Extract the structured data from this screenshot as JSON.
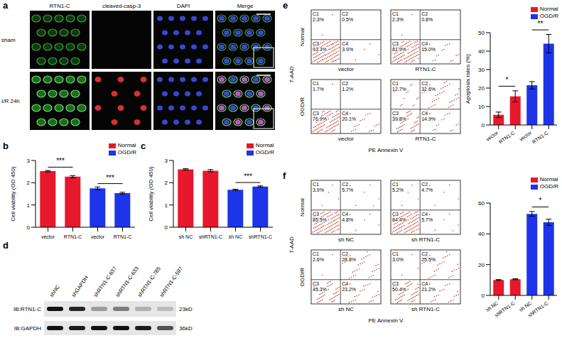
{
  "panels": {
    "a": {
      "letter": "a",
      "columns": [
        "RTN1-C",
        "cleaved-casp-3",
        "DAPI",
        "Merge"
      ],
      "rows": [
        "sham",
        "I/R 24h"
      ]
    },
    "d": {
      "letter": "d",
      "lanes": [
        "shNC",
        "shGAPDH",
        "shRTN1-C-837",
        "shRTN1-C-633",
        "shRTN1-C-785",
        "shRTN1-C-597"
      ],
      "blots": [
        {
          "label": "IB:RTN1-C",
          "size": "23kD",
          "band_intensity": [
            1,
            0.9,
            0.35,
            0.5,
            0.25,
            0.2
          ]
        },
        {
          "label": "IB:GAPDH",
          "size": "36kD",
          "band_intensity": [
            1,
            0.95,
            1,
            1,
            0.95,
            0.7
          ]
        }
      ]
    },
    "e_flow": {
      "letter": "e",
      "rows": [
        "Normal",
        "OGD/R"
      ],
      "columns": [
        "vector",
        "RTN1-C"
      ],
      "x_label": "PE Annexin V",
      "y_label": "7-AAD",
      "plots": [
        [
          [
            {
              "quadrant": "C1",
              "value": 2.3,
              "label": "2.3%"
            },
            {
              "quadrant": "C2",
              "value": 0.5,
              "label": "0.5%"
            },
            {
              "quadrant": "C3",
              "value": 93.3,
              "label": "93.3%"
            },
            {
              "quadrant": "C4",
              "value": 3.9,
              "label": "3.9%"
            }
          ],
          [
            {
              "quadrant": "C1",
              "value": 2.3,
              "label": "2.3%"
            },
            {
              "quadrant": "C2",
              "value": 0.8,
              "label": "0.8%"
            },
            {
              "quadrant": "C3",
              "value": 81.9,
              "label": "81.9%"
            },
            {
              "quadrant": "C4",
              "value": 15.0,
              "label": "15.0%"
            }
          ]
        ],
        [
          [
            {
              "quadrant": "C1",
              "value": 1.7,
              "label": "1.7%"
            },
            {
              "quadrant": "C2",
              "value": 1.2,
              "label": "1.2%"
            },
            {
              "quadrant": "C3",
              "value": 76.9,
              "label": "76.9%"
            },
            {
              "quadrant": "C4",
              "value": 20.1,
              "label": "20.1%"
            }
          ],
          [
            {
              "quadrant": "C1",
              "value": 12.7,
              "label": "12.7%"
            },
            {
              "quadrant": "C2",
              "value": 32.6,
              "label": "32.6%"
            },
            {
              "quadrant": "C3",
              "value": 39.8,
              "label": "39.8%"
            },
            {
              "quadrant": "C4",
              "value": 14.9,
              "label": "14.9%"
            }
          ]
        ]
      ]
    },
    "f_flow": {
      "letter": "f",
      "rows": [
        "Normal",
        "OGD/R"
      ],
      "columns": [
        "sh NC",
        "sh RTN1-C"
      ],
      "x_label": "PE Annexin V",
      "y_label": "7-AAD",
      "plots": [
        [
          [
            {
              "quadrant": "C1",
              "value": 3.9,
              "label": "3.9%"
            },
            {
              "quadrant": "C2",
              "value": 5.7,
              "label": "5.7%"
            },
            {
              "quadrant": "C3",
              "value": 85.5,
              "label": "85.5%"
            },
            {
              "quadrant": "C4",
              "value": 4.8,
              "label": "4.8%"
            }
          ],
          [
            {
              "quadrant": "C1",
              "value": 5.2,
              "label": "5.2%"
            },
            {
              "quadrant": "C2",
              "value": 4.7,
              "label": "4.7%"
            },
            {
              "quadrant": "C3",
              "value": 84.4,
              "label": "84.4%"
            },
            {
              "quadrant": "C4",
              "value": 5.7,
              "label": "5.7%"
            }
          ]
        ],
        [
          [
            {
              "quadrant": "C1",
              "value": 2.6,
              "label": "2.6%"
            },
            {
              "quadrant": "C2",
              "value": 28.8,
              "label": "28.8%"
            },
            {
              "quadrant": "C3",
              "value": 45.3,
              "label": "45.3%"
            },
            {
              "quadrant": "C4",
              "value": 23.2,
              "label": "23.2%"
            }
          ],
          [
            {
              "quadrant": "C1",
              "value": 3.0,
              "label": "3.0%"
            },
            {
              "quadrant": "C2",
              "value": 25.5,
              "label": "25.5%"
            },
            {
              "quadrant": "C3",
              "value": 50.4,
              "label": "50.4%"
            },
            {
              "quadrant": "C4",
              "value": 21.2,
              "label": "21.2%"
            }
          ]
        ]
      ]
    }
  },
  "chart_data": [
    {
      "panel": "b",
      "type": "bar",
      "y_label": "Cell viability (OD 450)",
      "categories": [
        "vector",
        "RTN1-C",
        "vector",
        "RTN1-C"
      ],
      "series": [
        {
          "name": "Normal",
          "color": "#e8182c",
          "values": [
            2.52,
            2.27,
            null,
            null
          ],
          "errors": [
            0.03,
            0.05,
            null,
            null
          ]
        },
        {
          "name": "OGD/R",
          "color": "#1c35e8",
          "values": [
            null,
            null,
            1.75,
            1.53
          ],
          "errors": [
            null,
            null,
            0.06,
            0.04
          ]
        }
      ],
      "ylim": [
        0,
        3
      ],
      "yticks": [
        0,
        1,
        2,
        3
      ],
      "legend": "top right",
      "annotations": [
        {
          "text": "***",
          "between": [
            0,
            1
          ]
        },
        {
          "text": "***",
          "between": [
            2,
            3
          ]
        }
      ]
    },
    {
      "panel": "c",
      "type": "bar",
      "y_label": "Cell viability (OD 450)",
      "categories": [
        "sh NC",
        "shRTN1-C",
        "sh NC",
        "shRTN1-C"
      ],
      "series": [
        {
          "name": "Normal",
          "color": "#e8182c",
          "values": [
            2.6,
            2.54,
            null,
            null
          ],
          "errors": [
            0.03,
            0.05,
            null,
            null
          ]
        },
        {
          "name": "OGD/R",
          "color": "#1c35e8",
          "values": [
            null,
            null,
            1.68,
            1.83
          ],
          "errors": [
            null,
            null,
            0.03,
            0.03
          ]
        }
      ],
      "ylim": [
        0,
        3
      ],
      "yticks": [
        0,
        1,
        2,
        3
      ],
      "legend": "top right",
      "annotations": [
        {
          "text": "***",
          "between": [
            2,
            3
          ]
        }
      ]
    },
    {
      "type": "bar",
      "y_label": "Apoptosis rates (%)",
      "categories": [
        "vector",
        "RTN1-C",
        "vector",
        "RTN1-C"
      ],
      "series": [
        {
          "name": "Normal",
          "color": "#e8182c",
          "values": [
            5.5,
            15.5,
            null,
            null
          ],
          "errors": [
            1.5,
            3,
            null,
            null
          ]
        },
        {
          "name": "OGD/R",
          "color": "#1c35e8",
          "values": [
            null,
            null,
            21.5,
            44
          ],
          "errors": [
            null,
            null,
            2,
            5
          ]
        }
      ],
      "ylim": [
        0,
        50
      ],
      "yticks": [
        0,
        10,
        20,
        30,
        40,
        50
      ],
      "legend": "top right",
      "annotations": [
        {
          "text": "*",
          "between": [
            0,
            1
          ]
        },
        {
          "text": "**",
          "between": [
            2,
            3
          ]
        }
      ]
    },
    {
      "type": "bar",
      "categories": [
        "sh NC",
        "shRTN1-C",
        "sh NC",
        "shRTN1-C"
      ],
      "series": [
        {
          "name": "Normal",
          "color": "#e8182c",
          "values": [
            10,
            10.5,
            null,
            null
          ],
          "errors": [
            0.3,
            0.3,
            null,
            null
          ]
        },
        {
          "name": "OGD/R",
          "color": "#1c35e8",
          "values": [
            null,
            null,
            53,
            47.5
          ],
          "errors": [
            null,
            null,
            1.5,
            2
          ]
        }
      ],
      "ylim": [
        0,
        60
      ],
      "yticks": [
        0,
        20,
        40,
        60
      ],
      "legend": "top right",
      "annotations": [
        {
          "text": "*",
          "between": [
            2,
            3
          ]
        }
      ]
    }
  ]
}
